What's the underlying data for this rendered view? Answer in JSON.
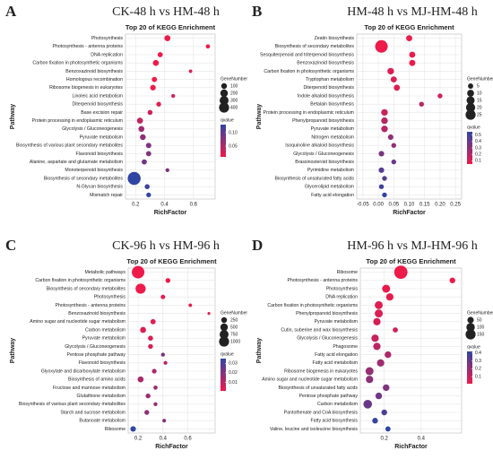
{
  "chart_data": [
    {
      "type": "scatter",
      "panel": "A",
      "title": "CK-48 h vs HM-48 h",
      "subtitle": "Top 20 of KEGG Enrichment",
      "xlabel": "RichFactor",
      "ylabel": "Pathway",
      "categories": [
        "Photosynthesis",
        "Photosynthesis - antenna proteins",
        "DNA replication",
        "Carbon fixation in photosynthetic organisms",
        "Benzoxazinoid biosynthesis",
        "Homologous recombination",
        "Ribosome biogenesis in eukaryotes",
        "Linoleic acid metabolism",
        "Diterpenoid biosynthesis",
        "Base excision repair",
        "Protein processing in endoplasmic reticulum",
        "Glycolysis / Gluconeogenesis",
        "Pyruvate metabolism",
        "Biosynthesis of various plant secondary metabolites",
        "Flavonoid biosynthesis",
        "Alanine, aspartate and glutamate metabolism",
        "Monoterpenoid biosynthesis",
        "Biosynthesis of secondary metabolites",
        "N-Glycan biosynthesis",
        "Mismatch repair"
      ],
      "values": [
        0.42,
        0.7,
        0.37,
        0.34,
        0.58,
        0.33,
        0.32,
        0.46,
        0.36,
        0.3,
        0.23,
        0.24,
        0.25,
        0.29,
        0.29,
        0.26,
        0.42,
        0.19,
        0.28,
        0.29
      ],
      "sizes": [
        60,
        20,
        40,
        60,
        10,
        40,
        50,
        15,
        30,
        35,
        60,
        60,
        55,
        45,
        40,
        40,
        15,
        430,
        35,
        30
      ],
      "qvalues": [
        0.01,
        0.01,
        0.01,
        0.01,
        0.02,
        0.01,
        0.01,
        0.03,
        0.02,
        0.03,
        0.04,
        0.06,
        0.07,
        0.08,
        0.08,
        0.09,
        0.08,
        0.13,
        0.12,
        0.13
      ],
      "xlim": [
        0.13,
        0.75
      ],
      "xticks": [
        0.2,
        0.4,
        0.6
      ],
      "size_title": "GeneNumber",
      "size_ticks": [
        100,
        200,
        300,
        400
      ],
      "color_title": "qvalue",
      "qlim": [
        0.01,
        0.13
      ],
      "qticks": [
        {
          "value": 0.1,
          "label": "0.10"
        },
        0.05
      ],
      "color_low": "#ee1a4a",
      "color_high": "#2f45a3"
    },
    {
      "type": "scatter",
      "panel": "B",
      "title": "HM-48 h vs MJ-HM-48 h",
      "subtitle": "Top 20 of KEGG Enrichment",
      "xlabel": "RichFactor",
      "ylabel": "Pathway",
      "categories": [
        "Zeatin biosynthesis",
        "Biosynthesis of secondary metabolites",
        "Sesquiterpenoid and triterpenoid biosynthesis",
        "Benzoxazinoid biosynthesis",
        "Carbon fixation in photosynthetic organisms",
        "Tryptophan metabolism",
        "Diterpenoid biosynthesis",
        "Indole alkaloid biosynthesis",
        "Betalain biosynthesis",
        "Protein processing in endoplasmic reticulum",
        "Phenylpropanoid biosynthesis",
        "Pyruvate metabolism",
        "Nitrogen metabolism",
        "Isoquinoline alkaloid biosynthesis",
        "Glycolysis / Gluconeogenesis",
        "Brassinosteroid biosynthesis",
        "Pyrimidine metabolism",
        "Biosynthesis of unsaturated fatty acids",
        "Glycerolipid metabolism",
        "Fatty acid elongation"
      ],
      "values": [
        0.1,
        0.01,
        0.11,
        0.11,
        0.04,
        0.05,
        0.06,
        0.2,
        0.14,
        0.02,
        0.02,
        0.02,
        0.04,
        0.05,
        0.01,
        0.05,
        0.01,
        0.02,
        0.01,
        0.02
      ],
      "sizes": [
        4,
        25,
        4,
        4,
        5,
        4,
        4,
        2,
        2,
        5,
        5,
        5,
        3,
        2,
        3,
        2,
        3,
        2,
        2,
        2
      ],
      "qvalues": [
        0.05,
        0.05,
        0.06,
        0.06,
        0.1,
        0.1,
        0.1,
        0.12,
        0.2,
        0.15,
        0.2,
        0.2,
        0.3,
        0.3,
        0.35,
        0.4,
        0.45,
        0.45,
        0.5,
        0.55
      ],
      "xlim": [
        -0.07,
        0.27
      ],
      "xticks": [
        -0.05,
        {
          "value": 0,
          "label": "0.00"
        },
        0.05,
        {
          "value": 0.1,
          "label": "0.10"
        },
        0.15,
        {
          "value": 0.2,
          "label": "0.20"
        },
        0.25
      ],
      "size_title": "GeneNumber",
      "size_ticks": [
        5,
        10,
        15,
        20,
        25
      ],
      "color_title": "qvalue",
      "qlim": [
        0.05,
        0.55
      ],
      "qticks": [
        0.5,
        0.4,
        0.3,
        0.2,
        0.1
      ],
      "color_low": "#ee1a4a",
      "color_high": "#2f45a3"
    },
    {
      "type": "scatter",
      "panel": "C",
      "title": "CK-96 h vs HM-96 h",
      "subtitle": "Top 20 of KEGG Enrichment",
      "xlabel": "RichFactor",
      "ylabel": "Pathway",
      "categories": [
        "Metabolic pathways",
        "Carbon fixation in photosynthetic organisms",
        "Biosynthesis of secondary metabolites",
        "Photosynthesis",
        "Photosynthesis - antenna proteins",
        "Benzoxazinoid biosynthesis",
        "Amino sugar and nucleotide sugar metabolism",
        "Carbon metabolism",
        "Pyruvate metabolism",
        "Glycolysis / Gluconeogenesis",
        "Pentose phosphate pathway",
        "Flavonoid biosynthesis",
        "Glyoxylate and dicarboxylate metabolism",
        "Biosynthesis of amino acids",
        "Fructose and mannose metabolism",
        "Glutathione metabolism",
        "Biosynthesis of various plant secondary metabolites",
        "Starch and sucrose metabolism",
        "Butanoate metabolism",
        "Ribosome"
      ],
      "values": [
        0.2,
        0.44,
        0.22,
        0.4,
        0.62,
        0.77,
        0.32,
        0.24,
        0.3,
        0.3,
        0.4,
        0.42,
        0.33,
        0.22,
        0.34,
        0.28,
        0.34,
        0.27,
        0.41,
        0.16
      ],
      "sizes": [
        1000,
        80,
        600,
        60,
        25,
        10,
        100,
        150,
        90,
        80,
        40,
        35,
        70,
        150,
        50,
        80,
        40,
        80,
        30,
        120
      ],
      "qvalues": [
        0.001,
        0.001,
        0.001,
        0.002,
        0.002,
        0.003,
        0.004,
        0.004,
        0.005,
        0.005,
        0.022,
        0.01,
        0.012,
        0.013,
        0.015,
        0.015,
        0.016,
        0.018,
        0.02,
        0.035
      ],
      "xlim": [
        0.12,
        0.82
      ],
      "xticks": [
        0.2,
        0.4,
        0.6
      ],
      "size_title": "GeneNumber",
      "size_ticks": [
        250,
        500,
        750,
        1000
      ],
      "color_title": "qvalue",
      "qlim": [
        0.001,
        0.035
      ],
      "qticks": [
        0.03,
        0.02,
        0.01
      ],
      "color_low": "#ee1a4a",
      "color_high": "#2f45a3"
    },
    {
      "type": "scatter",
      "panel": "D",
      "title": "HM-96 h vs MJ-HM-96 h",
      "subtitle": "Top 20 of KEGG Enrichment",
      "xlabel": "RichFactor",
      "ylabel": "Pathway",
      "categories": [
        "Ribosome",
        "Photosynthesis - antenna proteins",
        "Photosynthesis",
        "DNA replication",
        "Carbon fixation in photosynthetic organisms",
        "Phenylpropanoid biosynthesis",
        "Pyruvate metabolism",
        "Cutin, suberine and wax biosynthesis",
        "Glycolysis / Gluconeogenesis",
        "Phagosome",
        "Fatty acid elongation",
        "Fatty acid metabolism",
        "Ribosome biogenesis in eukaryotes",
        "Amino sugar and nucleotide sugar metabolism",
        "Biosynthesis of unsaturated fatty acids",
        "Pentose phosphate pathway",
        "Carbon metabolism",
        "Pantothenate and CoA biosynthesis",
        "Fatty acid biosynthesis",
        "Valine, leucine and isoleucine biosynthesis"
      ],
      "values": [
        0.29,
        0.57,
        0.21,
        0.23,
        0.17,
        0.17,
        0.16,
        0.26,
        0.15,
        0.16,
        0.22,
        0.18,
        0.12,
        0.12,
        0.21,
        0.17,
        0.11,
        0.2,
        0.15,
        0.22
      ],
      "sizes": [
        170,
        20,
        50,
        40,
        50,
        50,
        40,
        15,
        40,
        40,
        30,
        40,
        50,
        40,
        30,
        30,
        60,
        20,
        20,
        15
      ],
      "qvalues": [
        0.01,
        0.01,
        0.02,
        0.03,
        0.04,
        0.05,
        0.06,
        0.07,
        0.1,
        0.12,
        0.15,
        0.18,
        0.2,
        0.22,
        0.25,
        0.28,
        0.3,
        0.35,
        0.4,
        0.42
      ],
      "xlim": [
        0.07,
        0.62
      ],
      "xticks": [
        0.2,
        0.4
      ],
      "size_title": "GeneNumber",
      "size_ticks": [
        50,
        100,
        150
      ],
      "color_title": "qvalue",
      "qlim": [
        0.01,
        0.42
      ],
      "qticks": [
        0.4,
        0.3,
        0.2,
        0.1
      ],
      "color_low": "#ee1a4a",
      "color_high": "#2f45a3"
    }
  ]
}
